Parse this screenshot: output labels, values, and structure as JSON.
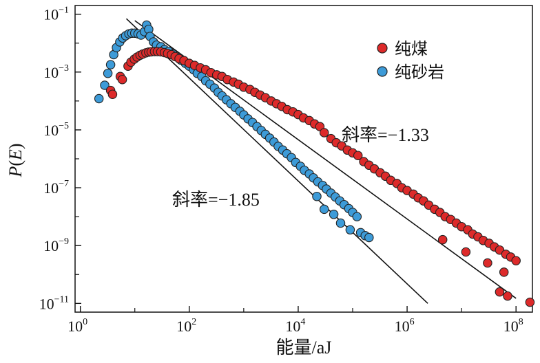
{
  "chart_data": {
    "type": "scatter",
    "xlabel": "能量/aJ",
    "ylabel": "P(E)",
    "x_scale": "log",
    "y_scale": "log",
    "xlim": [
      0.8,
      200000000
    ],
    "ylim": [
      5e-12,
      0.2
    ],
    "grid": false,
    "legend_position": "top-right",
    "x_ticks": [
      {
        "base": "10",
        "exp": "0",
        "value": 1
      },
      {
        "base": "10",
        "exp": "2",
        "value": 100
      },
      {
        "base": "10",
        "exp": "4",
        "value": 10000
      },
      {
        "base": "10",
        "exp": "6",
        "value": 1000000
      },
      {
        "base": "10",
        "exp": "8",
        "value": 100000000
      }
    ],
    "y_ticks": [
      {
        "base": "10",
        "exp": "−1",
        "value": 0.1
      },
      {
        "base": "10",
        "exp": "−3",
        "value": 0.001
      },
      {
        "base": "10",
        "exp": "−5",
        "value": 1e-05
      },
      {
        "base": "10",
        "exp": "−7",
        "value": 1e-07
      },
      {
        "base": "10",
        "exp": "−9",
        "value": 1e-09
      },
      {
        "base": "10",
        "exp": "−11",
        "value": 1e-11
      }
    ],
    "annotations": [
      {
        "text": "斜率=−1.33",
        "x": 250000,
        "y": 1.6e-05
      },
      {
        "text": "斜率=−1.85",
        "x": 2000,
        "y": 4.5e-08
      }
    ],
    "series": [
      {
        "name": "纯煤",
        "color": "#dd2a2a",
        "points": [
          [
            3.6,
            0.00023
          ],
          [
            3.9,
            0.00017
          ],
          [
            5.4,
            0.0007
          ],
          [
            5.9,
            0.00055
          ],
          [
            7.5,
            0.0016
          ],
          [
            8.5,
            0.0022
          ],
          [
            9.8,
            0.0028
          ],
          [
            11,
            0.0033
          ],
          [
            12.5,
            0.0038
          ],
          [
            14,
            0.0042
          ],
          [
            16,
            0.0046
          ],
          [
            18,
            0.0049
          ],
          [
            20,
            0.005
          ],
          [
            23,
            0.0051
          ],
          [
            26,
            0.0051
          ],
          [
            30,
            0.005
          ],
          [
            35,
            0.0047
          ],
          [
            40,
            0.0044
          ],
          [
            47,
            0.004
          ],
          [
            55,
            0.0034
          ],
          [
            65,
            0.0029
          ],
          [
            80,
            0.0025
          ],
          [
            100,
            0.002
          ],
          [
            125,
            0.0017
          ],
          [
            160,
            0.0014
          ],
          [
            200,
            0.0012
          ],
          [
            250,
            0.00095
          ],
          [
            320,
            0.0008
          ],
          [
            400,
            0.0007
          ],
          [
            500,
            0.00055
          ],
          [
            650,
            0.00045
          ],
          [
            800,
            0.00038
          ],
          [
            1000,
            0.0003
          ],
          [
            1300,
            0.00025
          ],
          [
            1600,
            0.0002
          ],
          [
            2000,
            0.00016
          ],
          [
            2500,
            0.00013
          ],
          [
            3200,
            0.0001
          ],
          [
            4000,
            8e-05
          ],
          [
            5000,
            6.5e-05
          ],
          [
            6300,
            5e-05
          ],
          [
            8000,
            4.2e-05
          ],
          [
            10000,
            3.4e-05
          ],
          [
            12500,
            2.6e-05
          ],
          [
            16000,
            2.1e-05
          ],
          [
            20000,
            1.6e-05
          ],
          [
            25000,
            1.3e-05
          ],
          [
            30000,
            8e-06
          ],
          [
            40000,
            5e-06
          ],
          [
            50000,
            3.6e-06
          ],
          [
            63000,
            2.8e-06
          ],
          [
            80000,
            2e-06
          ],
          [
            100000,
            1.6e-06
          ],
          [
            125000,
            1.3e-06
          ],
          [
            160000,
            8e-07
          ],
          [
            200000,
            6e-07
          ],
          [
            250000,
            4.5e-07
          ],
          [
            320000,
            3.3e-07
          ],
          [
            400000,
            2.5e-07
          ],
          [
            500000,
            1.8e-07
          ],
          [
            650000,
            1.4e-07
          ],
          [
            800000,
            1e-07
          ],
          [
            1000000,
            8e-08
          ],
          [
            1300000,
            6e-08
          ],
          [
            1600000,
            4.5e-08
          ],
          [
            2000000,
            3.5e-08
          ],
          [
            2500000,
            2.5e-08
          ],
          [
            3200000,
            1.8e-08
          ],
          [
            4000000,
            1.4e-08
          ],
          [
            5000000,
            1e-08
          ],
          [
            6300000,
            8e-09
          ],
          [
            8000000,
            6e-09
          ],
          [
            10000000,
            4.5e-09
          ],
          [
            13000000,
            3.5e-09
          ],
          [
            16000000,
            2.5e-09
          ],
          [
            20000000,
            2e-09
          ],
          [
            25000000,
            1.5e-09
          ],
          [
            32000000,
            1.2e-09
          ],
          [
            40000000,
            9e-10
          ],
          [
            50000000,
            7e-10
          ],
          [
            65000000,
            5e-10
          ],
          [
            80000000,
            4e-10
          ],
          [
            100000000,
            3e-10
          ],
          [
            4500000,
            1.6e-09
          ],
          [
            12000000,
            6e-10
          ],
          [
            30000000,
            2.5e-10
          ],
          [
            60000000,
            1.2e-10
          ],
          [
            180000000,
            1.1e-11
          ],
          [
            70000000,
            1.8e-11
          ],
          [
            50000000,
            2.5e-11
          ]
        ]
      },
      {
        "name": "纯砂岩",
        "color": "#3d9bd8",
        "points": [
          [
            2.2,
            0.00012
          ],
          [
            2.8,
            0.00035
          ],
          [
            3.2,
            0.0009
          ],
          [
            3.6,
            0.0018
          ],
          [
            4.1,
            0.004
          ],
          [
            4.6,
            0.007
          ],
          [
            5.3,
            0.011
          ],
          [
            6.0,
            0.015
          ],
          [
            6.8,
            0.018
          ],
          [
            7.8,
            0.021
          ],
          [
            8.8,
            0.022
          ],
          [
            10,
            0.022
          ],
          [
            11.5,
            0.021
          ],
          [
            13,
            0.019
          ],
          [
            15,
            0.025
          ],
          [
            16.5,
            0.042
          ],
          [
            18,
            0.03
          ],
          [
            19,
            0.017
          ],
          [
            22,
            0.011
          ],
          [
            25,
            0.0085
          ],
          [
            30,
            0.0075
          ],
          [
            35,
            0.006
          ],
          [
            42,
            0.0052
          ],
          [
            50,
            0.0042
          ],
          [
            60,
            0.0033
          ],
          [
            70,
            0.0026
          ],
          [
            85,
            0.002
          ],
          [
            100,
            0.0016
          ],
          [
            120,
            0.0012
          ],
          [
            140,
            0.0009
          ],
          [
            170,
            0.0007
          ],
          [
            200,
            0.0005
          ],
          [
            240,
            0.00038
          ],
          [
            290,
            0.00028
          ],
          [
            340,
            0.0002
          ],
          [
            400,
            0.00015
          ],
          [
            480,
            0.00011
          ],
          [
            580,
            8e-05
          ],
          [
            700,
            6e-05
          ],
          [
            850,
            4.4e-05
          ],
          [
            1000,
            3.3e-05
          ],
          [
            1200,
            2.4e-05
          ],
          [
            1450,
            1.8e-05
          ],
          [
            1750,
            1.3e-05
          ],
          [
            2100,
            9.5e-06
          ],
          [
            2500,
            7e-06
          ],
          [
            3000,
            5.2e-06
          ],
          [
            3600,
            3.8e-06
          ],
          [
            4300,
            2.7e-06
          ],
          [
            5200,
            2e-06
          ],
          [
            6200,
            1.5e-06
          ],
          [
            7500,
            1.1e-06
          ],
          [
            9000,
            7.5e-07
          ],
          [
            11000,
            5.5e-07
          ],
          [
            13000,
            4e-07
          ],
          [
            16000,
            3e-07
          ],
          [
            19000,
            2.2e-07
          ],
          [
            23000,
            1.6e-07
          ],
          [
            28000,
            1.2e-07
          ],
          [
            33000,
            9e-08
          ],
          [
            40000,
            6.5e-08
          ],
          [
            48000,
            4.8e-08
          ],
          [
            58000,
            3.5e-08
          ],
          [
            70000,
            2.6e-08
          ],
          [
            85000,
            1.9e-08
          ],
          [
            100000,
            1.4e-08
          ],
          [
            120000,
            1e-08
          ],
          [
            140000,
            2.8e-09
          ],
          [
            170000,
            2.2e-09
          ],
          [
            200000,
            1.9e-09
          ],
          [
            30000,
            1.8e-08
          ],
          [
            60000,
            6e-09
          ],
          [
            90000,
            3.5e-09
          ],
          [
            22000,
            5e-08
          ],
          [
            45000,
            1.2e-08
          ]
        ]
      }
    ],
    "fit_lines": [
      {
        "slope": -1.33,
        "x_start": 10,
        "y_start": 0.06,
        "x_end": 100000000,
        "y_end": 1.5e-11
      },
      {
        "slope": -1.85,
        "x_start": 7,
        "y_start": 0.07,
        "x_end": 2400000,
        "y_end": 1e-11
      }
    ]
  }
}
